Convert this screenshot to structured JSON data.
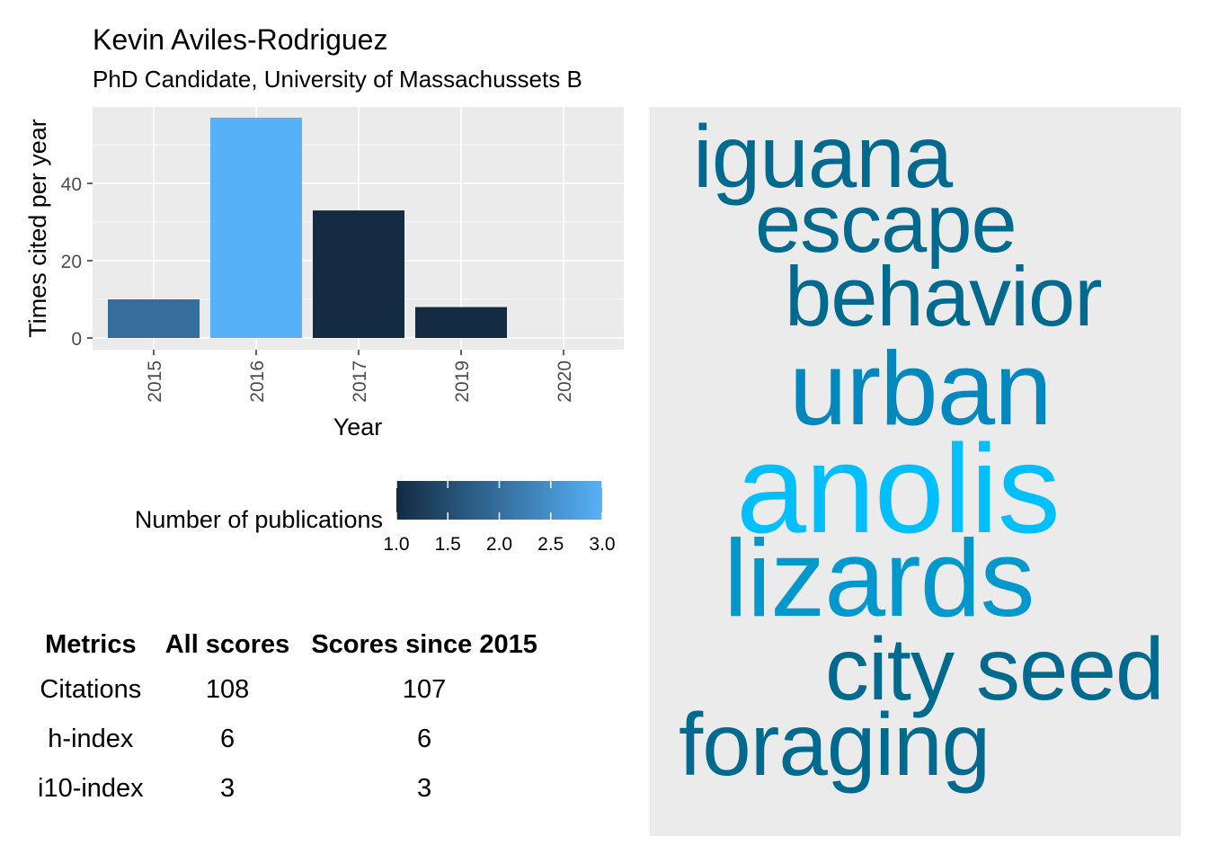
{
  "header": {
    "title": "Kevin Aviles-Rodriguez",
    "subtitle": "PhD Candidate, University of Massachussets B"
  },
  "chart_data": {
    "type": "bar",
    "xlabel": "Year",
    "ylabel": "Times cited per year",
    "categories": [
      "2015",
      "2016",
      "2017",
      "2019",
      "2020"
    ],
    "values": [
      10,
      57,
      33,
      8,
      0
    ],
    "publications": [
      2,
      3,
      1,
      1,
      1
    ],
    "ylim": [
      0,
      60
    ],
    "yticks": [
      "0",
      "20",
      "40"
    ],
    "grid": true,
    "legend": {
      "title": "Number of publications",
      "placement": "below",
      "ticks": [
        "1.0",
        "1.5",
        "2.0",
        "2.5",
        "3.0"
      ],
      "low_color": "#132B43",
      "high_color": "#56B1F7"
    }
  },
  "metrics_table": {
    "headers": [
      "Metrics",
      "All scores",
      "Scores since 2015"
    ],
    "rows": [
      [
        "Citations",
        "108",
        "107"
      ],
      [
        "h-index",
        "6",
        "6"
      ],
      [
        "i10-index",
        "3",
        "3"
      ]
    ]
  },
  "word_cloud": {
    "background": "#ebebeb",
    "words": [
      {
        "text": "iguana",
        "color": "#006a8e"
      },
      {
        "text": "escape",
        "color": "#006a8e"
      },
      {
        "text": "behavior",
        "color": "#006a8e"
      },
      {
        "text": "urban",
        "color": "#0388bd"
      },
      {
        "text": "anolis",
        "color": "#00bfff"
      },
      {
        "text": "lizards",
        "color": "#0298cc"
      },
      {
        "text": "city",
        "color": "#006a8e"
      },
      {
        "text": "seed",
        "color": "#006a8e"
      },
      {
        "text": "foraging",
        "color": "#006a8e"
      }
    ]
  }
}
